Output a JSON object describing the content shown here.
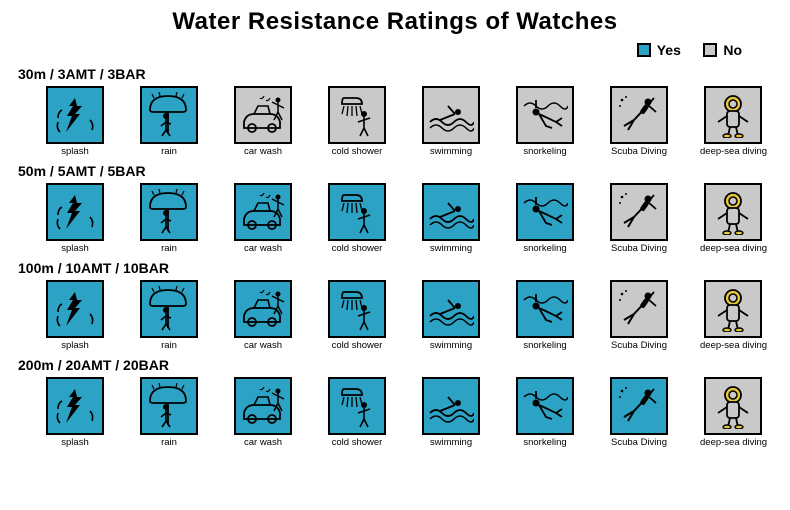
{
  "title": "Water Resistance Ratings of Watches",
  "title_fontsize": 24,
  "legend": {
    "yes_label": "Yes",
    "no_label": "No",
    "yes_color": "#2ca3c4",
    "no_color": "#c9c9c9",
    "fontsize": 14
  },
  "colors": {
    "yes_fill": "#2ca3c4",
    "no_fill": "#c9c9c9",
    "border": "#000000",
    "icon_stroke": "#101010",
    "diver_helmet": "#e6c838",
    "background": "#ffffff"
  },
  "label_fontsize": 14,
  "activity_fontsize": 9.5,
  "tile_size": 58,
  "activities": [
    {
      "key": "splash",
      "label": "splash"
    },
    {
      "key": "rain",
      "label": "rain"
    },
    {
      "key": "car_wash",
      "label": "car wash"
    },
    {
      "key": "cold_shower",
      "label": "cold shower"
    },
    {
      "key": "swimming",
      "label": "swimming"
    },
    {
      "key": "snorkeling",
      "label": "snorkeling"
    },
    {
      "key": "scuba",
      "label": "Scuba Diving"
    },
    {
      "key": "deepsea",
      "label": "deep-sea diving"
    }
  ],
  "ratings": [
    {
      "label": "30m / 3AMT / 3BAR",
      "values": [
        true,
        true,
        false,
        false,
        false,
        false,
        false,
        false
      ]
    },
    {
      "label": "50m / 5AMT / 5BAR",
      "values": [
        true,
        true,
        true,
        true,
        true,
        true,
        false,
        false
      ]
    },
    {
      "label": "100m / 10AMT / 10BAR",
      "values": [
        true,
        true,
        true,
        true,
        true,
        true,
        false,
        false
      ]
    },
    {
      "label": "200m / 20AMT / 20BAR",
      "values": [
        true,
        true,
        true,
        true,
        true,
        true,
        true,
        false
      ]
    }
  ]
}
